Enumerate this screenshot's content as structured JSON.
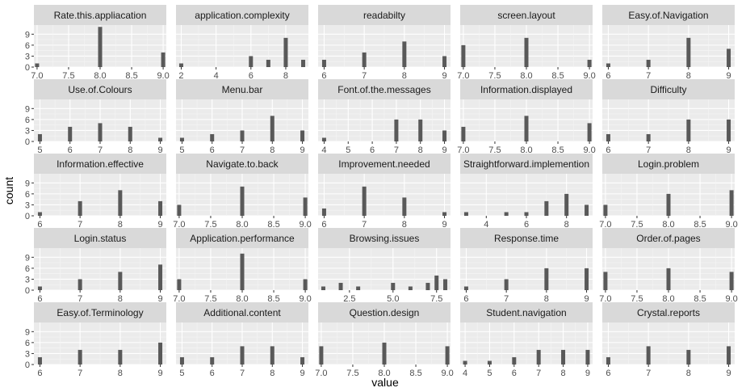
{
  "chart_data": {
    "type": "bar",
    "xlabel": "value",
    "ylabel": "count",
    "facet_layout": "5x5 grid, free x scales, shared y",
    "ylim": [
      0,
      11.5
    ],
    "y_ticks": [
      0,
      3,
      6,
      9
    ],
    "colors": {
      "bar": "#595959",
      "panel": "#ebebeb",
      "strip": "#d9d9d9",
      "grid": "#ffffff"
    },
    "panels": [
      {
        "title": "Rate.this.appliacation",
        "xlim": [
          6.95,
          9.05
        ],
        "ticks": [
          "7.0",
          "7.5",
          "8.0",
          "8.5",
          "9.0"
        ],
        "tick_values": [
          7,
          7.5,
          8,
          8.5,
          9
        ],
        "bars": [
          {
            "x": 7,
            "y": 1
          },
          {
            "x": 8,
            "y": 11
          },
          {
            "x": 9,
            "y": 4
          }
        ]
      },
      {
        "title": "application.complexity",
        "xlim": [
          1.7,
          9.3
        ],
        "ticks": [
          "2",
          "4",
          "6",
          "8"
        ],
        "tick_values": [
          2,
          4,
          6,
          8
        ],
        "bars": [
          {
            "x": 2,
            "y": 1
          },
          {
            "x": 6,
            "y": 3
          },
          {
            "x": 7,
            "y": 2
          },
          {
            "x": 8,
            "y": 8
          },
          {
            "x": 9,
            "y": 2
          }
        ]
      },
      {
        "title": "readabilty",
        "xlim": [
          5.85,
          9.15
        ],
        "ticks": [
          "6",
          "7",
          "8",
          "9"
        ],
        "tick_values": [
          6,
          7,
          8,
          9
        ],
        "bars": [
          {
            "x": 6,
            "y": 2
          },
          {
            "x": 7,
            "y": 4
          },
          {
            "x": 8,
            "y": 7
          },
          {
            "x": 9,
            "y": 3
          }
        ]
      },
      {
        "title": "screen.layout",
        "xlim": [
          6.95,
          9.05
        ],
        "ticks": [
          "7.0",
          "7.5",
          "8.0",
          "8.5",
          "9.0"
        ],
        "tick_values": [
          7,
          7.5,
          8,
          8.5,
          9
        ],
        "bars": [
          {
            "x": 7,
            "y": 6
          },
          {
            "x": 8,
            "y": 8
          },
          {
            "x": 9,
            "y": 2
          }
        ]
      },
      {
        "title": "Easy.of.Navigation",
        "xlim": [
          5.85,
          9.15
        ],
        "ticks": [
          "6",
          "7",
          "8",
          "9"
        ],
        "tick_values": [
          6,
          7,
          8,
          9
        ],
        "bars": [
          {
            "x": 6,
            "y": 1
          },
          {
            "x": 7,
            "y": 2
          },
          {
            "x": 8,
            "y": 8
          },
          {
            "x": 9,
            "y": 5
          }
        ]
      },
      {
        "title": "Use.of.Colours",
        "xlim": [
          4.8,
          9.2
        ],
        "ticks": [
          "5",
          "6",
          "7",
          "8",
          "9"
        ],
        "tick_values": [
          5,
          6,
          7,
          8,
          9
        ],
        "bars": [
          {
            "x": 5,
            "y": 2
          },
          {
            "x": 6,
            "y": 4
          },
          {
            "x": 7,
            "y": 5
          },
          {
            "x": 8,
            "y": 4
          },
          {
            "x": 9,
            "y": 1
          }
        ]
      },
      {
        "title": "Menu.bar",
        "xlim": [
          4.8,
          9.2
        ],
        "ticks": [
          "5",
          "6",
          "7",
          "8",
          "9"
        ],
        "tick_values": [
          5,
          6,
          7,
          8,
          9
        ],
        "bars": [
          {
            "x": 5,
            "y": 1
          },
          {
            "x": 6,
            "y": 2
          },
          {
            "x": 7,
            "y": 3
          },
          {
            "x": 8,
            "y": 7
          },
          {
            "x": 9,
            "y": 3
          }
        ]
      },
      {
        "title": "Font.of.the.messages",
        "xlim": [
          3.75,
          9.25
        ],
        "ticks": [
          "4",
          "5",
          "6",
          "7",
          "8",
          "9"
        ],
        "tick_values": [
          4,
          5,
          6,
          7,
          8,
          9
        ],
        "bars": [
          {
            "x": 4,
            "y": 1
          },
          {
            "x": 7,
            "y": 6
          },
          {
            "x": 8,
            "y": 6
          },
          {
            "x": 9,
            "y": 3
          }
        ]
      },
      {
        "title": "Information.displayed",
        "xlim": [
          6.95,
          9.05
        ],
        "ticks": [
          "7.0",
          "7.5",
          "8.0",
          "8.5",
          "9.0"
        ],
        "tick_values": [
          7,
          7.5,
          8,
          8.5,
          9
        ],
        "bars": [
          {
            "x": 7,
            "y": 4
          },
          {
            "x": 8,
            "y": 7
          },
          {
            "x": 9,
            "y": 5
          }
        ]
      },
      {
        "title": "Difficulty",
        "xlim": [
          5.85,
          9.15
        ],
        "ticks": [
          "6",
          "7",
          "8",
          "9"
        ],
        "tick_values": [
          6,
          7,
          8,
          9
        ],
        "bars": [
          {
            "x": 6,
            "y": 2
          },
          {
            "x": 7,
            "y": 2
          },
          {
            "x": 8,
            "y": 6
          },
          {
            "x": 9,
            "y": 6
          }
        ]
      },
      {
        "title": "Information.effective",
        "xlim": [
          5.85,
          9.15
        ],
        "ticks": [
          "6",
          "7",
          "8",
          "9"
        ],
        "tick_values": [
          6,
          7,
          8,
          9
        ],
        "bars": [
          {
            "x": 6,
            "y": 1
          },
          {
            "x": 7,
            "y": 4
          },
          {
            "x": 8,
            "y": 7
          },
          {
            "x": 9,
            "y": 4
          }
        ]
      },
      {
        "title": "Navigate.to.back",
        "xlim": [
          6.95,
          9.05
        ],
        "ticks": [
          "7.0",
          "7.5",
          "8.0",
          "8.5",
          "9.0"
        ],
        "tick_values": [
          7,
          7.5,
          8,
          8.5,
          9
        ],
        "bars": [
          {
            "x": 7,
            "y": 3
          },
          {
            "x": 8,
            "y": 8
          },
          {
            "x": 9,
            "y": 5
          }
        ]
      },
      {
        "title": "Improvement.needed",
        "xlim": [
          5.85,
          9.15
        ],
        "ticks": [
          "6",
          "7",
          "8",
          "9"
        ],
        "tick_values": [
          6,
          7,
          8,
          9
        ],
        "bars": [
          {
            "x": 6,
            "y": 2
          },
          {
            "x": 7,
            "y": 8
          },
          {
            "x": 8,
            "y": 5
          },
          {
            "x": 9,
            "y": 1
          }
        ]
      },
      {
        "title": "Straightforward.implemention",
        "xlim": [
          2.7,
          9.3
        ],
        "ticks": [
          "4",
          "6",
          "8"
        ],
        "tick_values": [
          4,
          6,
          8
        ],
        "bars": [
          {
            "x": 3,
            "y": 1
          },
          {
            "x": 5,
            "y": 1
          },
          {
            "x": 6,
            "y": 1
          },
          {
            "x": 7,
            "y": 4
          },
          {
            "x": 8,
            "y": 6
          },
          {
            "x": 9,
            "y": 3
          }
        ]
      },
      {
        "title": "Login.problem",
        "xlim": [
          6.95,
          9.05
        ],
        "ticks": [
          "7.0",
          "7.5",
          "8.0",
          "8.5",
          "9.0"
        ],
        "tick_values": [
          7,
          7.5,
          8,
          8.5,
          9
        ],
        "bars": [
          {
            "x": 7,
            "y": 3
          },
          {
            "x": 8,
            "y": 6
          },
          {
            "x": 9,
            "y": 7
          }
        ]
      },
      {
        "title": "Login.status",
        "xlim": [
          5.85,
          9.15
        ],
        "ticks": [
          "6",
          "7",
          "8",
          "9"
        ],
        "tick_values": [
          6,
          7,
          8,
          9
        ],
        "bars": [
          {
            "x": 6,
            "y": 1
          },
          {
            "x": 7,
            "y": 3
          },
          {
            "x": 8,
            "y": 5
          },
          {
            "x": 9,
            "y": 7
          }
        ]
      },
      {
        "title": "Application.performance",
        "xlim": [
          6.95,
          9.05
        ],
        "ticks": [
          "7.0",
          "7.5",
          "8.0",
          "8.5",
          "9.0"
        ],
        "tick_values": [
          7,
          7.5,
          8,
          8.5,
          9
        ],
        "bars": [
          {
            "x": 7,
            "y": 3
          },
          {
            "x": 8,
            "y": 10
          },
          {
            "x": 9,
            "y": 3
          }
        ]
      },
      {
        "title": "Browsing.issues",
        "xlim": [
          0.7,
          8.3
        ],
        "ticks": [
          "2.5",
          "5.0",
          "7.5"
        ],
        "tick_values": [
          2.5,
          5,
          7.5
        ],
        "bars": [
          {
            "x": 1,
            "y": 1
          },
          {
            "x": 2,
            "y": 2
          },
          {
            "x": 3,
            "y": 1
          },
          {
            "x": 5,
            "y": 2
          },
          {
            "x": 6,
            "y": 1
          },
          {
            "x": 7,
            "y": 2
          },
          {
            "x": 7.5,
            "y": 4
          },
          {
            "x": 8,
            "y": 3
          }
        ]
      },
      {
        "title": "Response.time",
        "xlim": [
          5.85,
          9.15
        ],
        "ticks": [
          "6",
          "7",
          "8",
          "9"
        ],
        "tick_values": [
          6,
          7,
          8,
          9
        ],
        "bars": [
          {
            "x": 6,
            "y": 1
          },
          {
            "x": 7,
            "y": 3
          },
          {
            "x": 8,
            "y": 6
          },
          {
            "x": 9,
            "y": 6
          }
        ]
      },
      {
        "title": "Order.of.pages",
        "xlim": [
          6.95,
          9.05
        ],
        "ticks": [
          "7.0",
          "7.5",
          "8.0",
          "8.5",
          "9.0"
        ],
        "tick_values": [
          7,
          7.5,
          8,
          8.5,
          9
        ],
        "bars": [
          {
            "x": 7,
            "y": 5
          },
          {
            "x": 8,
            "y": 6
          },
          {
            "x": 9,
            "y": 5
          }
        ]
      },
      {
        "title": "Easy.of.Terminology",
        "xlim": [
          5.85,
          9.15
        ],
        "ticks": [
          "6",
          "7",
          "8",
          "9"
        ],
        "tick_values": [
          6,
          7,
          8,
          9
        ],
        "bars": [
          {
            "x": 6,
            "y": 2
          },
          {
            "x": 7,
            "y": 4
          },
          {
            "x": 8,
            "y": 4
          },
          {
            "x": 9,
            "y": 6
          }
        ]
      },
      {
        "title": "Additional.content",
        "xlim": [
          4.8,
          9.2
        ],
        "ticks": [
          "5",
          "6",
          "7",
          "8",
          "9"
        ],
        "tick_values": [
          5,
          6,
          7,
          8,
          9
        ],
        "bars": [
          {
            "x": 5,
            "y": 2
          },
          {
            "x": 6,
            "y": 2
          },
          {
            "x": 7,
            "y": 5
          },
          {
            "x": 8,
            "y": 5
          },
          {
            "x": 9,
            "y": 2
          }
        ]
      },
      {
        "title": "Question.design",
        "xlim": [
          6.95,
          9.05
        ],
        "ticks": [
          "7.0",
          "7.5",
          "8.0",
          "8.5",
          "9.0"
        ],
        "tick_values": [
          7,
          7.5,
          8,
          8.5,
          9
        ],
        "bars": [
          {
            "x": 7,
            "y": 5
          },
          {
            "x": 8,
            "y": 6
          },
          {
            "x": 9,
            "y": 5
          }
        ]
      },
      {
        "title": "Student.navigation",
        "xlim": [
          3.8,
          9.2
        ],
        "ticks": [
          "4",
          "5",
          "6",
          "7",
          "8",
          "9"
        ],
        "tick_values": [
          4,
          5,
          6,
          7,
          8,
          9
        ],
        "bars": [
          {
            "x": 4,
            "y": 1
          },
          {
            "x": 5,
            "y": 1
          },
          {
            "x": 6,
            "y": 2
          },
          {
            "x": 7,
            "y": 4
          },
          {
            "x": 8,
            "y": 4
          },
          {
            "x": 9,
            "y": 4
          }
        ]
      },
      {
        "title": "Crystal.reports",
        "xlim": [
          5.85,
          9.15
        ],
        "ticks": [
          "6",
          "7",
          "8",
          "9"
        ],
        "tick_values": [
          6,
          7,
          8,
          9
        ],
        "bars": [
          {
            "x": 6,
            "y": 2
          },
          {
            "x": 7,
            "y": 5
          },
          {
            "x": 8,
            "y": 4
          },
          {
            "x": 9,
            "y": 5
          }
        ]
      }
    ]
  }
}
